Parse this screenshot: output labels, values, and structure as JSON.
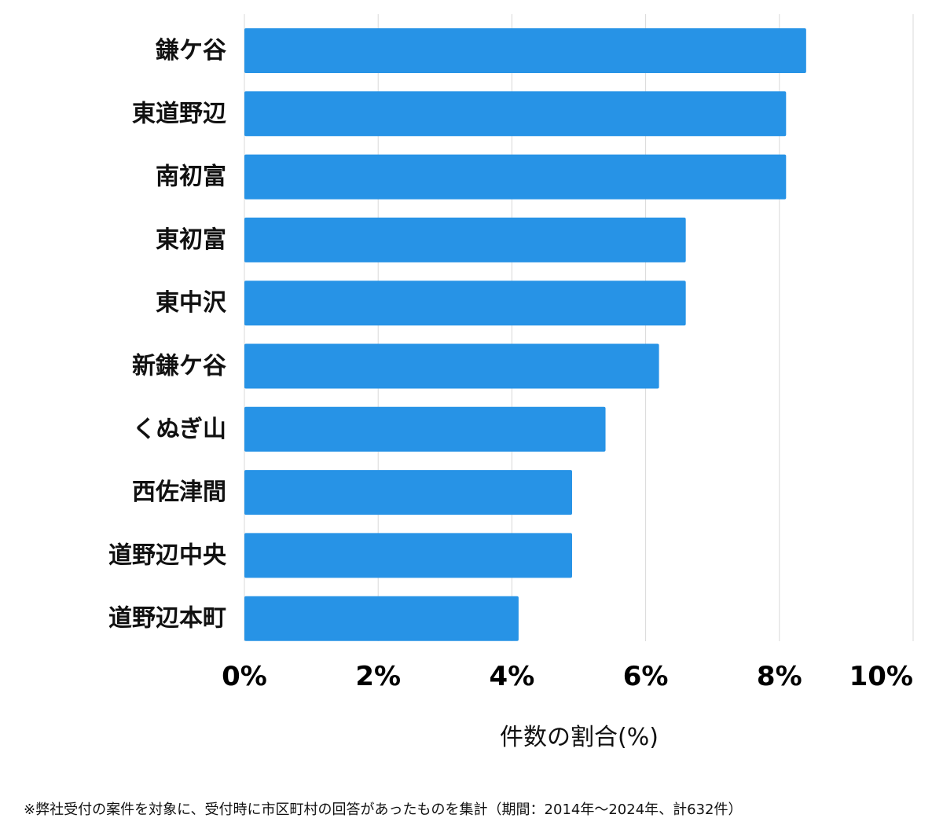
{
  "chart_data": {
    "type": "bar",
    "orientation": "horizontal",
    "categories": [
      "鎌ケ谷",
      "東道野辺",
      "南初富",
      "東初富",
      "東中沢",
      "新鎌ケ谷",
      "くぬぎ山",
      "西佐津間",
      "道野辺中央",
      "道野辺本町"
    ],
    "values": [
      8.4,
      8.1,
      8.1,
      6.6,
      6.6,
      6.2,
      5.4,
      4.9,
      4.9,
      4.1
    ],
    "xlim": [
      0,
      10
    ],
    "xticks": [
      0,
      2,
      4,
      6,
      8,
      10
    ],
    "xtick_labels": [
      "0%",
      "2%",
      "4%",
      "6%",
      "8%",
      "10%"
    ],
    "xlabel": "件数の割合(%)",
    "ylabel": "",
    "title": "",
    "grid": "vertical",
    "bar_color": "#2793e6",
    "grid_color": "#d9d9d9"
  },
  "footnote": "※弊社受付の案件を対象に、受付時に市区町村の回答があったものを集計（期間：2014年～2024年、計632件）"
}
